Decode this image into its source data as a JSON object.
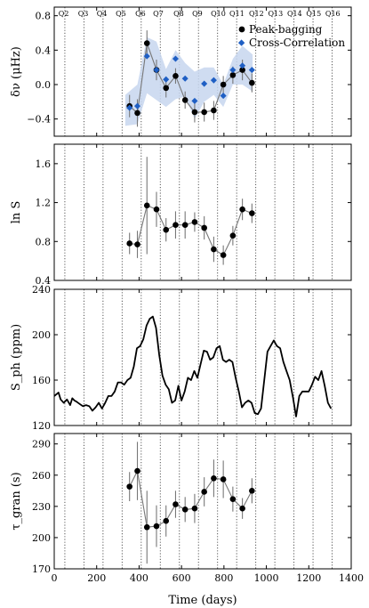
{
  "chart_data": [
    {
      "type": "line",
      "id": "dnu",
      "ylabel": "δν (μHz)",
      "ylim": [
        -0.6,
        0.9
      ],
      "yticks": [
        -0.4,
        0.0,
        0.4,
        0.8
      ],
      "ytick_labels": [
        "−0.4",
        "0.0",
        "0.4",
        "0.8"
      ],
      "xlim": [
        0,
        1400
      ],
      "quarter_boundaries": [
        50,
        140,
        230,
        320,
        410,
        500,
        590,
        680,
        770,
        860,
        950,
        1040,
        1130,
        1220,
        1310
      ],
      "quarter_labels": [
        "Q2",
        "Q3",
        "Q4",
        "Q5",
        "Q6",
        "Q7",
        "Q8",
        "Q9",
        "Q10",
        "Q11",
        "Q12",
        "Q13",
        "Q14",
        "Q15",
        "Q16"
      ],
      "quarter_label_x": [
        20,
        112,
        200,
        290,
        382,
        466,
        562,
        650,
        738,
        826,
        918,
        1008,
        1098,
        1188,
        1278
      ],
      "legend": {
        "placement": "top-right",
        "entries": [
          "Peak-bagging",
          "Cross-Correlation"
        ]
      },
      "series": [
        {
          "name": "Peak-bagging",
          "style": "errorbar-line",
          "color": "#000000",
          "x": [
            355,
            392,
            437,
            482,
            527,
            572,
            617,
            662,
            707,
            752,
            797,
            842,
            887,
            932
          ],
          "y": [
            -0.25,
            -0.33,
            0.48,
            0.17,
            -0.04,
            0.1,
            -0.18,
            -0.32,
            -0.32,
            -0.3,
            0.0,
            0.11,
            0.17,
            0.02
          ],
          "yerr": [
            0.13,
            0.16,
            0.15,
            0.12,
            0.11,
            0.09,
            0.1,
            0.12,
            0.11,
            0.11,
            0.1,
            0.1,
            0.12,
            0.11
          ]
        },
        {
          "name": "Cross-Correlation",
          "style": "markers",
          "color": "#1f5fc4",
          "x": [
            355,
            392,
            437,
            482,
            527,
            572,
            617,
            662,
            707,
            752,
            797,
            842,
            887,
            932
          ],
          "y": [
            -0.27,
            -0.25,
            0.33,
            0.17,
            0.06,
            0.3,
            0.07,
            -0.19,
            0.01,
            0.05,
            -0.13,
            0.17,
            0.22,
            0.17
          ]
        },
        {
          "style": "band",
          "color": "#c7d6ee",
          "x": [
            335,
            392,
            437,
            482,
            527,
            572,
            617,
            662,
            707,
            752,
            797,
            842,
            887,
            935
          ],
          "upper": [
            -0.12,
            0.0,
            0.55,
            0.5,
            0.18,
            0.4,
            0.25,
            0.15,
            0.2,
            0.2,
            0.0,
            0.3,
            0.45,
            0.35
          ],
          "lower": [
            -0.48,
            -0.46,
            -0.1,
            -0.18,
            -0.26,
            -0.17,
            -0.14,
            -0.4,
            -0.2,
            -0.12,
            -0.26,
            0.0,
            0.0,
            -0.08
          ]
        }
      ]
    },
    {
      "type": "line",
      "id": "lnS",
      "ylabel": "ln S",
      "ylim": [
        0.4,
        1.8
      ],
      "yticks": [
        0.4,
        0.8,
        1.2,
        1.6
      ],
      "ytick_labels": [
        "0.4",
        "0.8",
        "1.2",
        "1.6"
      ],
      "xlim": [
        0,
        1400
      ],
      "series": [
        {
          "name": "Peak-bagging",
          "style": "errorbar-line",
          "color": "#000000",
          "x": [
            355,
            392,
            437,
            482,
            527,
            572,
            617,
            662,
            707,
            752,
            797,
            842,
            887,
            932
          ],
          "y": [
            0.78,
            0.77,
            1.17,
            1.13,
            0.92,
            0.97,
            0.97,
            1.0,
            0.94,
            0.72,
            0.66,
            0.86,
            1.13,
            1.09
          ],
          "yerr": [
            0.11,
            0.14,
            0.5,
            0.18,
            0.12,
            0.14,
            0.14,
            0.1,
            0.12,
            0.13,
            0.1,
            0.1,
            0.11,
            0.1
          ]
        }
      ]
    },
    {
      "type": "line",
      "id": "sph",
      "ylabel": "S_ph (ppm)",
      "ylim": [
        120,
        240
      ],
      "yticks": [
        120,
        160,
        200,
        240
      ],
      "ytick_labels": [
        "120",
        "160",
        "200",
        "240"
      ],
      "xlim": [
        0,
        1400
      ],
      "series": [
        {
          "style": "line",
          "color": "#000000",
          "x": [
            0,
            20,
            30,
            45,
            60,
            75,
            85,
            95,
            105,
            120,
            135,
            150,
            165,
            180,
            195,
            210,
            225,
            240,
            255,
            270,
            285,
            300,
            315,
            330,
            345,
            360,
            375,
            390,
            405,
            420,
            435,
            450,
            465,
            480,
            495,
            510,
            525,
            540,
            555,
            570,
            585,
            600,
            615,
            630,
            645,
            660,
            675,
            690,
            705,
            720,
            735,
            750,
            765,
            780,
            795,
            810,
            825,
            840,
            855,
            870,
            885,
            900,
            915,
            930,
            945,
            960,
            975,
            990,
            1005,
            1020,
            1035,
            1050,
            1065,
            1080,
            1095,
            1110,
            1125,
            1140,
            1155,
            1170,
            1185,
            1200,
            1215,
            1230,
            1245,
            1260,
            1275,
            1290,
            1305
          ],
          "y": [
            146,
            149,
            143,
            140,
            143,
            138,
            144,
            142,
            141,
            139,
            137,
            138,
            137,
            133,
            136,
            140,
            135,
            140,
            146,
            146,
            150,
            158,
            158,
            156,
            160,
            162,
            172,
            188,
            190,
            196,
            208,
            214,
            216,
            206,
            182,
            164,
            156,
            152,
            140,
            142,
            155,
            142,
            150,
            162,
            160,
            168,
            162,
            174,
            186,
            185,
            178,
            180,
            188,
            190,
            178,
            176,
            178,
            176,
            162,
            150,
            136,
            140,
            142,
            140,
            131,
            130,
            135,
            160,
            185,
            190,
            195,
            190,
            188,
            176,
            168,
            160,
            145,
            128,
            146,
            150,
            150,
            150,
            156,
            163,
            160,
            168,
            155,
            140,
            135
          ]
        }
      ]
    },
    {
      "type": "line",
      "id": "tau",
      "ylabel": "τ_gran (s)",
      "xlabel": "Time (days)",
      "ylim": [
        170,
        300
      ],
      "yticks": [
        170,
        200,
        230,
        260,
        290
      ],
      "ytick_labels": [
        "170",
        "200",
        "230",
        "260",
        "290"
      ],
      "xlim": [
        0,
        1400
      ],
      "xticks": [
        0,
        200,
        400,
        600,
        800,
        1000,
        1200,
        1400
      ],
      "xtick_labels": [
        "0",
        "200",
        "400",
        "600",
        "800",
        "1000",
        "1200",
        "1400"
      ],
      "series": [
        {
          "name": "Peak-bagging",
          "style": "errorbar-line",
          "color": "#000000",
          "x": [
            355,
            392,
            437,
            482,
            527,
            572,
            617,
            662,
            707,
            752,
            797,
            842,
            887,
            932
          ],
          "y": [
            249,
            264,
            210,
            211,
            216,
            232,
            227,
            228,
            244,
            257,
            256,
            237,
            228,
            245
          ],
          "yerr": [
            14,
            28,
            35,
            20,
            15,
            13,
            12,
            14,
            14,
            18,
            18,
            12,
            10,
            12
          ]
        }
      ]
    }
  ]
}
